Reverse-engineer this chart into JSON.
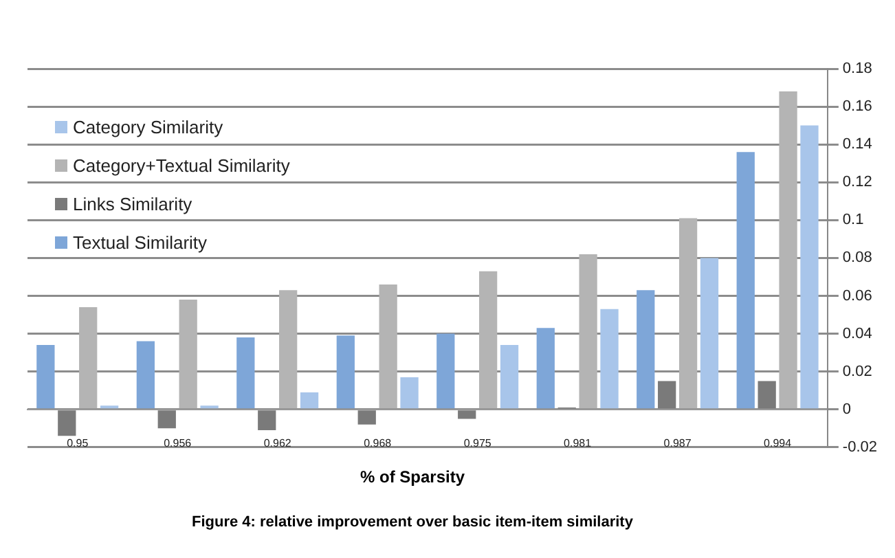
{
  "chart_data": {
    "type": "bar",
    "xlabel": "% of Sparsity",
    "annotations": [
      "Figure 4: relative improvement over basic item-item similarity"
    ],
    "categories": [
      "0.95",
      "0.956",
      "0.962",
      "0.968",
      "0.975",
      "0.981",
      "0.987",
      "0.994"
    ],
    "series": [
      {
        "name": "Textual Similarity",
        "color": "#7ea6d8",
        "values": [
          0.034,
          0.036,
          0.038,
          0.039,
          0.04,
          0.043,
          0.063,
          0.136
        ]
      },
      {
        "name": "Links Similarity",
        "color": "#7a7a7a",
        "values": [
          -0.014,
          -0.01,
          -0.011,
          -0.008,
          -0.005,
          0.001,
          0.015,
          0.015
        ]
      },
      {
        "name": "Category+Textual Similarity",
        "color": "#b4b4b4",
        "values": [
          0.054,
          0.058,
          0.063,
          0.066,
          0.073,
          0.082,
          0.101,
          0.168
        ]
      },
      {
        "name": "Category Similarity",
        "color": "#a8c5ea",
        "values": [
          0.002,
          0.002,
          0.009,
          0.017,
          0.034,
          0.053,
          0.08,
          0.15
        ]
      }
    ],
    "ylim": [
      -0.02,
      0.18
    ],
    "yticks": [
      -0.02,
      0,
      0.02,
      0.04,
      0.06,
      0.08,
      0.1,
      0.12,
      0.14,
      0.16,
      0.18
    ],
    "grid": "y",
    "legend": "top left"
  }
}
